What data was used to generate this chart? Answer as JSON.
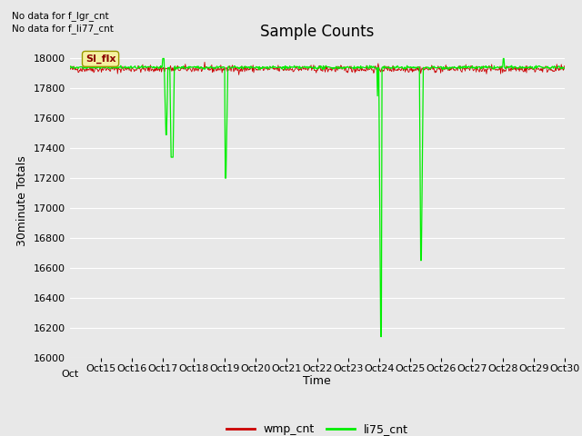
{
  "title": "Sample Counts",
  "xlabel": "Time",
  "ylabel": "30minute Totals",
  "no_data_text_1": "No data for f_lgr_cnt",
  "no_data_text_2": "No data for f_li77_cnt",
  "annotation_box_text": "SI_flx",
  "ylim": [
    16000,
    18100
  ],
  "yticks": [
    16000,
    16200,
    16400,
    16600,
    16800,
    17000,
    17200,
    17400,
    17600,
    17800,
    18000
  ],
  "background_color": "#e8e8e8",
  "wmp_color": "#cc0000",
  "li75_color": "#00ee00",
  "legend_labels": [
    "wmp_cnt",
    "li75_cnt"
  ],
  "title_fontsize": 12,
  "axis_label_fontsize": 9,
  "tick_fontsize": 8,
  "n_days": 16,
  "pts_per_day": 48,
  "wmp_base": 17930,
  "wmp_noise": 12,
  "li75_base": 17940,
  "li75_noise": 5,
  "x_tick_labels": [
    "Oct 15",
    "Oct 16",
    "Oct 17",
    "Oct 18",
    "Oct 19",
    "Oct 20",
    "Oct 21",
    "Oct 22",
    "Oct 23",
    "Oct 24",
    "Oct 25",
    "Oct 26",
    "Oct 27",
    "Oct 28",
    "Oct 29",
    "Oct 30"
  ]
}
